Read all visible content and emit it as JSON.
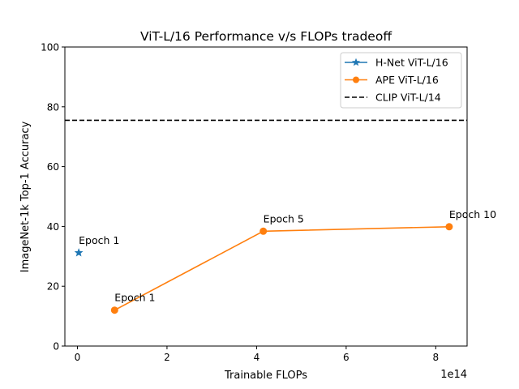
{
  "chart_data": {
    "type": "line",
    "title": "ViT-L/16 Performance v/s FLOPs tradeoff",
    "xlabel": "Trainable FLOPs",
    "ylabel": "ImageNet-1k Top-1 Accuracy",
    "x_offset_text": "1e14",
    "x_scale": 100000000000000.0,
    "xlim": [
      -28000000000000.0,
      870000000000000.0
    ],
    "ylim": [
      0,
      100
    ],
    "x_ticks": [
      {
        "value": 0,
        "label": "0"
      },
      {
        "value": 200000000000000.0,
        "label": "2"
      },
      {
        "value": 400000000000000.0,
        "label": "4"
      },
      {
        "value": 600000000000000.0,
        "label": "6"
      },
      {
        "value": 800000000000000.0,
        "label": "8"
      }
    ],
    "y_ticks": [
      {
        "value": 0,
        "label": "0"
      },
      {
        "value": 20,
        "label": "20"
      },
      {
        "value": 40,
        "label": "40"
      },
      {
        "value": 60,
        "label": "60"
      },
      {
        "value": 80,
        "label": "80"
      },
      {
        "value": 100,
        "label": "100"
      }
    ],
    "grid": false,
    "legend_position": "top-right",
    "series": [
      {
        "name": "H-Net ViT-L/16",
        "color": "#1f77b4",
        "marker": "star",
        "points": [
          {
            "x": 3000000000000.0,
            "y": 31.2,
            "label": "Epoch 1"
          }
        ]
      },
      {
        "name": "APE ViT-L/16",
        "color": "#ff7f0e",
        "marker": "circle",
        "points": [
          {
            "x": 83000000000000.0,
            "y": 12.0,
            "label": "Epoch 1"
          },
          {
            "x": 415000000000000.0,
            "y": 38.4,
            "label": "Epoch 5"
          },
          {
            "x": 830000000000000.0,
            "y": 39.9,
            "label": "Epoch 10"
          }
        ]
      }
    ],
    "reference_lines": [
      {
        "name": "CLIP ViT-L/14",
        "orientation": "horizontal",
        "y": 75.5,
        "color": "#000000",
        "style": "dashed"
      }
    ]
  }
}
